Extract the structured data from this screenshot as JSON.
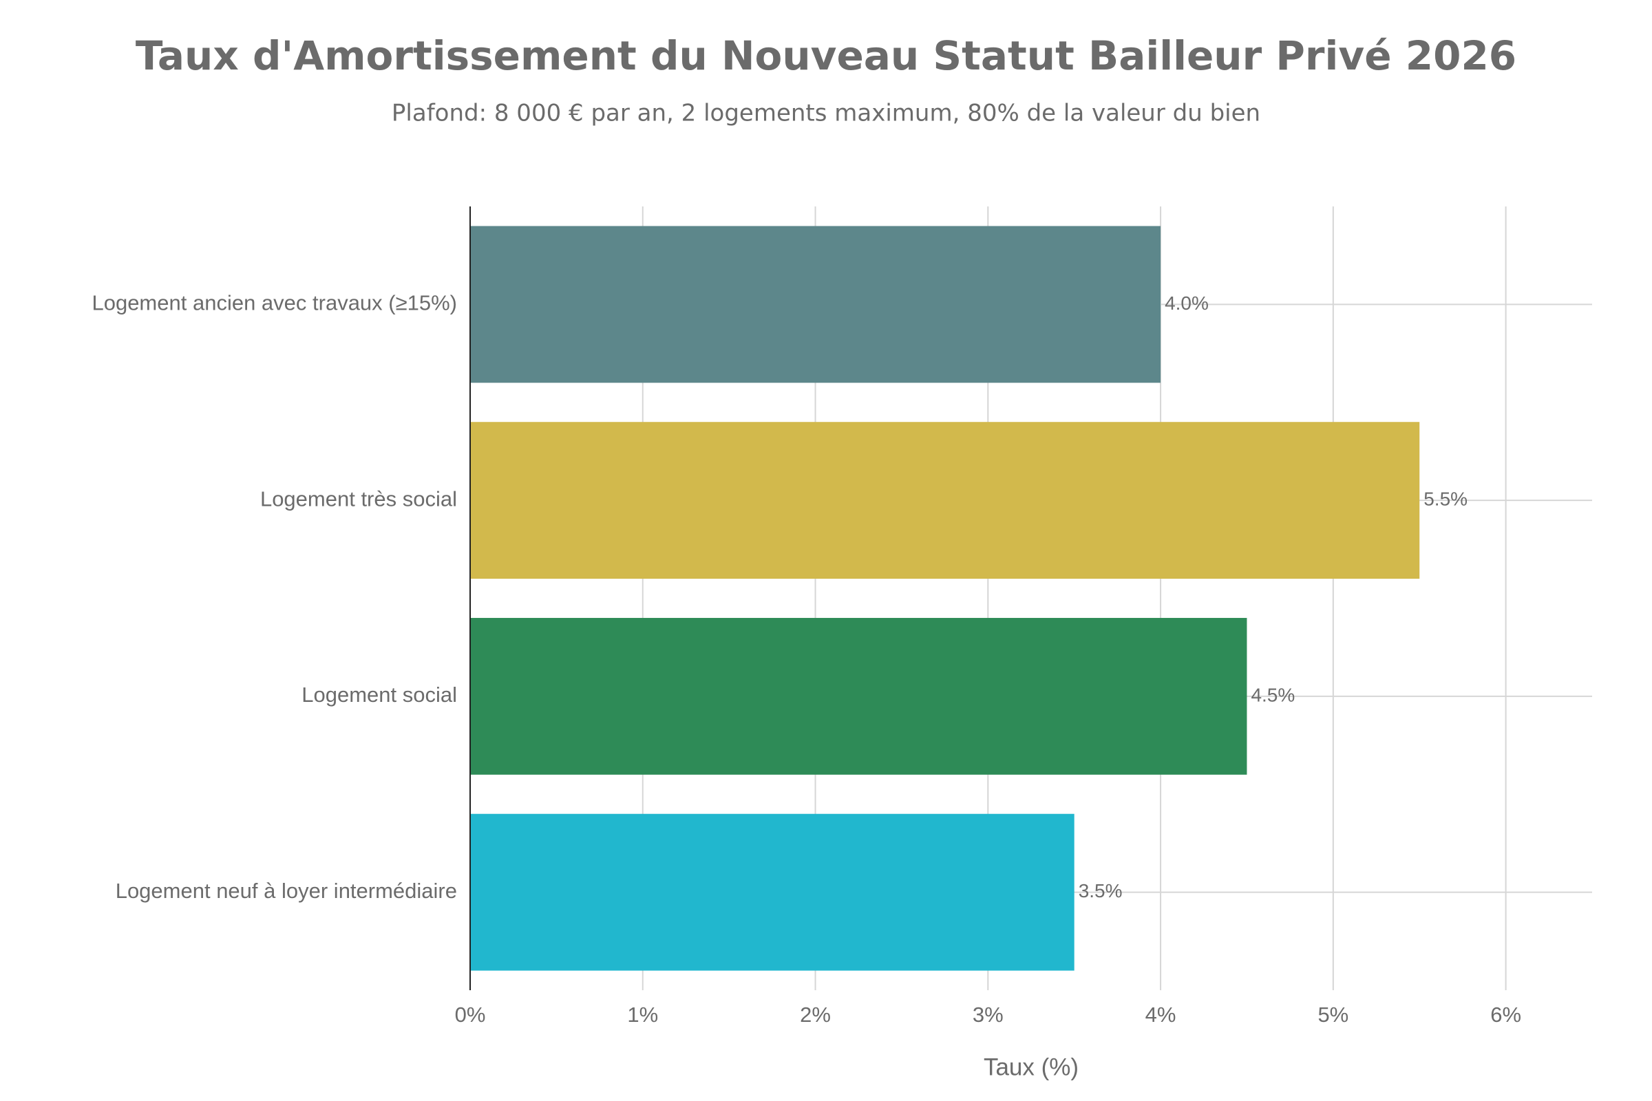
{
  "chart_data": {
    "type": "bar",
    "orientation": "horizontal",
    "title": "Taux d'Amortissement du Nouveau Statut Bailleur Privé 2026",
    "subtitle": "Plafond: 8 000 € par an, 2 logements maximum, 80% de la valeur du bien",
    "x_label": "Taux (%)",
    "categories": [
      "Logement ancien avec travaux (≥15%)",
      "Logement très social",
      "Logement social",
      "Logement neuf à loyer intermédiaire"
    ],
    "values": [
      4.0,
      5.5,
      4.5,
      3.5
    ],
    "value_labels": [
      "4.0%",
      "5.5%",
      "4.5%",
      "3.5%"
    ],
    "colors": [
      "#5d878b",
      "#d2b94c",
      "#2e8b57",
      "#21b7ce"
    ],
    "xlim": [
      0,
      6.5
    ],
    "xticks": [
      {
        "value": 0,
        "label": "0%"
      },
      {
        "value": 1,
        "label": "1%"
      },
      {
        "value": 2,
        "label": "2%"
      },
      {
        "value": 3,
        "label": "3%"
      },
      {
        "value": 4,
        "label": "4%"
      },
      {
        "value": 5,
        "label": "5%"
      },
      {
        "value": 6,
        "label": "6%"
      }
    ],
    "grid": true
  }
}
